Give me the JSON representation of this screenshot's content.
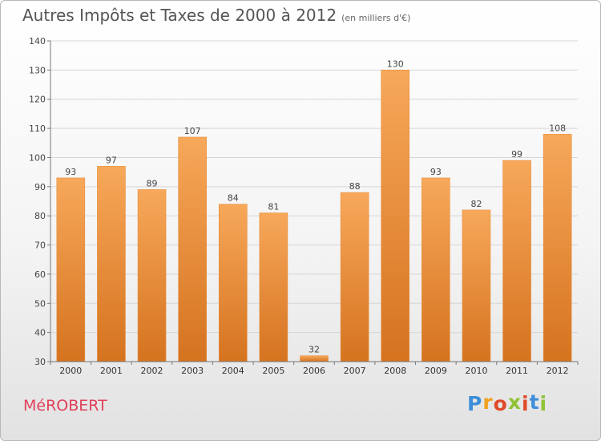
{
  "title": "Autres Impôts et Taxes de 2000 à 2012",
  "unit_note": "(en milliers d'€)",
  "town": "MéROBERT",
  "logo": {
    "letters": [
      "P",
      "r",
      "o",
      "x",
      "i",
      "t",
      "i"
    ],
    "colors": [
      "#3f8fd8",
      "#f0a020",
      "#e04a2a",
      "#8fc234",
      "#e04a2a",
      "#3f8fd8",
      "#8fc234"
    ]
  },
  "chart_data": {
    "type": "bar",
    "title": "Autres Impôts et Taxes de 2000 à 2012",
    "subtitle": "(en milliers d'€)",
    "categories": [
      "2000",
      "2001",
      "2002",
      "2003",
      "2004",
      "2005",
      "2006",
      "2007",
      "2008",
      "2009",
      "2010",
      "2011",
      "2012"
    ],
    "values": [
      93,
      97,
      89,
      107,
      84,
      81,
      32,
      88,
      130,
      93,
      82,
      99,
      108
    ],
    "ylim": [
      30,
      140
    ],
    "yticks": [
      30,
      40,
      50,
      60,
      70,
      80,
      90,
      100,
      110,
      120,
      130,
      140
    ],
    "grid": true,
    "bar_color_top": "#f7a85a",
    "bar_color_bottom": "#d5731f",
    "data_labels": true
  }
}
